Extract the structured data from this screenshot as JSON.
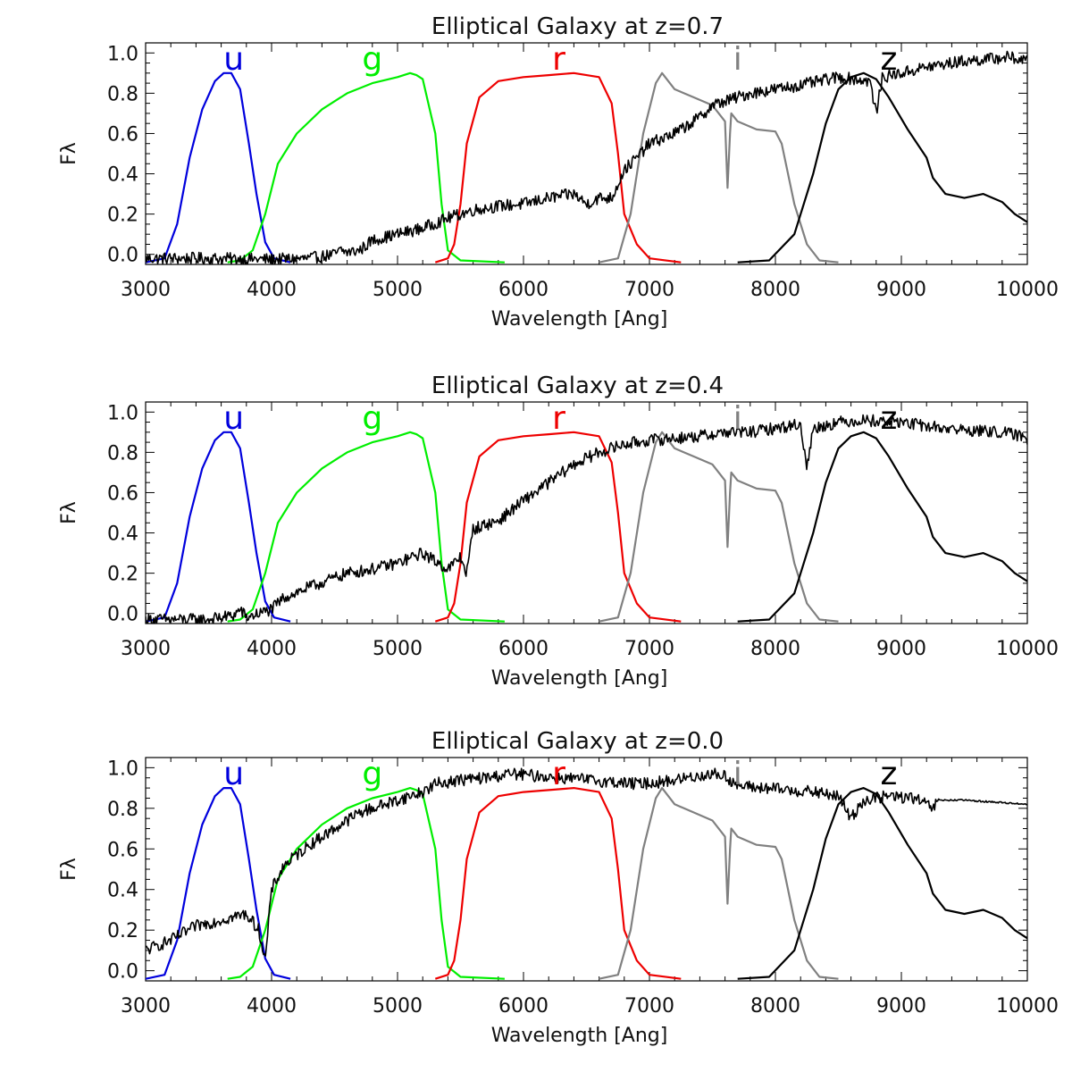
{
  "chart_data": {
    "type": "line",
    "panel_count": 3,
    "xlim": [
      3000,
      10000
    ],
    "ylim": [
      -0.05,
      1.05
    ],
    "x_ticks": [
      3000,
      4000,
      5000,
      6000,
      7000,
      8000,
      9000,
      10000
    ],
    "x_tick_labels": [
      "3000",
      "4000",
      "5000",
      "6000",
      "7000",
      "8000",
      "9000",
      "10000"
    ],
    "y_ticks": [
      0.0,
      0.2,
      0.4,
      0.6,
      0.8,
      1.0
    ],
    "y_tick_labels": [
      "0.0",
      "0.2",
      "0.4",
      "0.6",
      "0.8",
      "1.0"
    ],
    "xlabel": "Wavelength [Ang]",
    "ylabel": "Fλ",
    "grid": false,
    "legend": "band letters drawn above each filter curve",
    "filters": [
      {
        "label": "u",
        "color": "#0000dd",
        "label_x": 3700,
        "x": [
          3000,
          3150,
          3250,
          3350,
          3450,
          3550,
          3620,
          3680,
          3750,
          3820,
          3880,
          3950,
          4020,
          4150
        ],
        "values": [
          -0.04,
          -0.02,
          0.15,
          0.48,
          0.72,
          0.86,
          0.9,
          0.9,
          0.82,
          0.55,
          0.3,
          0.06,
          -0.02,
          -0.04
        ]
      },
      {
        "label": "g",
        "color": "#00ee00",
        "label_x": 4800,
        "x": [
          3650,
          3750,
          3850,
          3950,
          4050,
          4200,
          4400,
          4600,
          4800,
          5000,
          5100,
          5150,
          5200,
          5300,
          5350,
          5400,
          5500,
          5850
        ],
        "values": [
          -0.04,
          -0.03,
          0.02,
          0.2,
          0.45,
          0.6,
          0.72,
          0.8,
          0.85,
          0.88,
          0.9,
          0.89,
          0.87,
          0.6,
          0.25,
          0.02,
          -0.03,
          -0.04
        ]
      },
      {
        "label": "r",
        "color": "#ee0000",
        "label_x": 6280,
        "x": [
          5300,
          5400,
          5450,
          5500,
          5550,
          5650,
          5800,
          6000,
          6200,
          6400,
          6600,
          6700,
          6750,
          6800,
          6900,
          7000,
          7250
        ],
        "values": [
          -0.04,
          -0.02,
          0.05,
          0.25,
          0.55,
          0.78,
          0.86,
          0.88,
          0.89,
          0.9,
          0.88,
          0.75,
          0.5,
          0.2,
          0.05,
          -0.02,
          -0.04
        ]
      },
      {
        "label": "i",
        "color": "#808080",
        "label_x": 7700,
        "x": [
          6600,
          6750,
          6850,
          6950,
          7050,
          7100,
          7200,
          7350,
          7500,
          7600,
          7620,
          7640,
          7650,
          7700,
          7850,
          8000,
          8050,
          8150,
          8250,
          8350,
          8500
        ],
        "values": [
          -0.04,
          -0.02,
          0.2,
          0.6,
          0.85,
          0.9,
          0.82,
          0.78,
          0.74,
          0.66,
          0.33,
          0.6,
          0.7,
          0.66,
          0.62,
          0.61,
          0.55,
          0.25,
          0.05,
          -0.03,
          -0.04
        ]
      },
      {
        "label": "z",
        "color": "#000000",
        "label_x": 8900,
        "x": [
          7700,
          7950,
          8150,
          8300,
          8400,
          8500,
          8600,
          8700,
          8800,
          8900,
          9050,
          9200,
          9250,
          9350,
          9500,
          9650,
          9800,
          9900,
          10000
        ],
        "values": [
          -0.04,
          -0.03,
          0.1,
          0.4,
          0.65,
          0.82,
          0.88,
          0.9,
          0.87,
          0.78,
          0.62,
          0.48,
          0.38,
          0.3,
          0.28,
          0.3,
          0.26,
          0.2,
          0.16
        ]
      }
    ],
    "panels": [
      {
        "title": "Elliptical Galaxy at z=0.7",
        "spectrum": {
          "name": "",
          "color": "#000000",
          "x": [
            3000,
            3500,
            4000,
            4300,
            4500,
            4550,
            4600,
            4700,
            4800,
            5000,
            5200,
            5400,
            5600,
            5800,
            6000,
            6200,
            6400,
            6500,
            6600,
            6700,
            6800,
            6900,
            7000,
            7200,
            7400,
            7500,
            7600,
            7800,
            8000,
            8200,
            8500,
            8750,
            8800,
            8850,
            9000,
            9200,
            9500,
            9700,
            9850,
            10000
          ],
          "values": [
            -0.02,
            -0.02,
            -0.025,
            -0.02,
            0.0,
            0.02,
            0.01,
            0.02,
            0.07,
            0.1,
            0.13,
            0.18,
            0.22,
            0.24,
            0.25,
            0.28,
            0.3,
            0.25,
            0.28,
            0.28,
            0.42,
            0.48,
            0.55,
            0.6,
            0.68,
            0.74,
            0.76,
            0.8,
            0.82,
            0.84,
            0.88,
            0.86,
            0.7,
            0.88,
            0.9,
            0.93,
            0.96,
            0.97,
            0.98,
            0.96
          ]
        }
      },
      {
        "title": "Elliptical Galaxy at z=0.4",
        "spectrum": {
          "name": "",
          "color": "#000000",
          "x": [
            3000,
            3500,
            3700,
            3750,
            3800,
            4000,
            4100,
            4300,
            4600,
            4800,
            5000,
            5200,
            5400,
            5500,
            5550,
            5600,
            5800,
            6000,
            6200,
            6400,
            6600,
            6800,
            7000,
            7200,
            7400,
            7600,
            7800,
            8000,
            8200,
            8250,
            8300,
            8500,
            8700,
            9000,
            9200,
            9500,
            9800,
            9950,
            10000
          ],
          "values": [
            -0.03,
            -0.03,
            -0.01,
            0.02,
            -0.02,
            0.02,
            0.08,
            0.13,
            0.2,
            0.22,
            0.25,
            0.3,
            0.22,
            0.28,
            0.2,
            0.42,
            0.46,
            0.56,
            0.65,
            0.74,
            0.8,
            0.84,
            0.86,
            0.87,
            0.88,
            0.9,
            0.9,
            0.92,
            0.94,
            0.72,
            0.92,
            0.95,
            0.96,
            0.95,
            0.93,
            0.91,
            0.9,
            0.88,
            0.86
          ]
        }
      },
      {
        "title": "Elliptical Galaxy at z=0.0",
        "spectrum": {
          "name": "",
          "color": "#000000",
          "x": [
            3000,
            3200,
            3400,
            3600,
            3800,
            3900,
            3950,
            4000,
            4100,
            4300,
            4500,
            4700,
            4900,
            5100,
            5200,
            5300,
            5500,
            5700,
            5900,
            6100,
            6300,
            6500,
            6700,
            6900,
            7100,
            7300,
            7500,
            7600,
            7700,
            7900,
            8100,
            8300,
            8500,
            8600,
            8700,
            8900,
            9100,
            9250,
            9300,
            9500,
            10000
          ],
          "values": [
            0.1,
            0.15,
            0.22,
            0.25,
            0.28,
            0.2,
            0.05,
            0.4,
            0.52,
            0.62,
            0.7,
            0.78,
            0.82,
            0.86,
            0.88,
            0.92,
            0.94,
            0.95,
            0.97,
            0.96,
            0.95,
            0.94,
            0.93,
            0.92,
            0.93,
            0.95,
            0.97,
            0.96,
            0.91,
            0.9,
            0.89,
            0.88,
            0.86,
            0.75,
            0.84,
            0.86,
            0.85,
            0.8,
            0.84,
            0.84,
            0.82
          ]
        }
      }
    ]
  }
}
